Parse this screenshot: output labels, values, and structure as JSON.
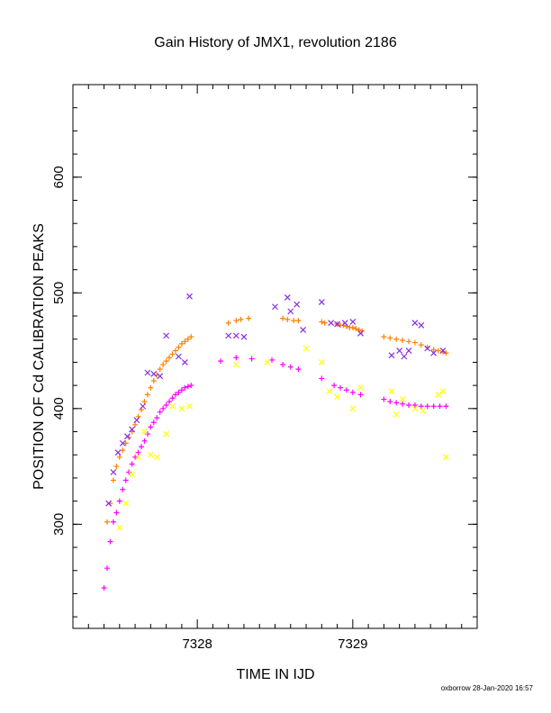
{
  "footer": "oxborrow 28-Jan-2020 16:57",
  "chart_data": {
    "type": "scatter",
    "title": "Gain History of JMX1, revolution 2186",
    "xlabel": "TIME IN IJD",
    "ylabel": "POSITION OF Cd CALIBRATION PEAKS",
    "xlim": [
      7327.2,
      7329.8
    ],
    "ylim": [
      210,
      680
    ],
    "x_ticks": [
      7328,
      7329
    ],
    "y_ticks": [
      300,
      400,
      500,
      600
    ],
    "grid": false,
    "colors": {
      "orange": "#ff8000",
      "purple": "#8a2be2",
      "magenta": "#ff00ff",
      "yellow": "#ffff00"
    },
    "series": [
      {
        "color": "orange",
        "marker": "plus",
        "x": [
          7327.42,
          7327.44,
          7327.46,
          7327.48,
          7327.5,
          7327.52,
          7327.54,
          7327.56,
          7327.58,
          7327.6,
          7327.62,
          7327.64,
          7327.66,
          7327.68,
          7327.7,
          7327.72,
          7327.74,
          7327.76,
          7327.78,
          7327.8,
          7327.82,
          7327.84,
          7327.86,
          7327.88,
          7327.9,
          7327.92,
          7327.94,
          7327.96,
          7328.2,
          7328.25,
          7328.28,
          7328.33,
          7328.55,
          7328.58,
          7328.62,
          7328.65,
          7328.8,
          7328.82,
          7328.9,
          7328.92,
          7328.94,
          7328.96,
          7328.98,
          7329.0,
          7329.02,
          7329.04,
          7329.06,
          7329.2,
          7329.24,
          7329.28,
          7329.32,
          7329.36,
          7329.4,
          7329.44,
          7329.48,
          7329.52,
          7329.55,
          7329.58,
          7329.6
        ],
        "y": [
          302,
          318,
          338,
          350,
          358,
          364,
          370,
          375,
          380,
          386,
          393,
          399,
          406,
          412,
          418,
          424,
          429,
          434,
          438,
          441,
          444,
          447,
          450,
          453,
          456,
          458,
          460,
          462,
          474,
          476,
          477,
          478,
          478,
          477,
          476,
          476,
          475,
          474,
          473,
          472,
          472,
          471,
          470,
          470,
          469,
          468,
          467,
          462,
          461,
          460,
          459,
          458,
          457,
          455,
          453,
          451,
          450,
          449,
          448
        ]
      },
      {
        "color": "purple",
        "marker": "cross",
        "x": [
          7327.43,
          7327.46,
          7327.49,
          7327.52,
          7327.55,
          7327.58,
          7327.61,
          7327.65,
          7327.68,
          7327.72,
          7327.76,
          7327.8,
          7327.88,
          7327.92,
          7327.95,
          7328.2,
          7328.25,
          7328.3,
          7328.5,
          7328.58,
          7328.6,
          7328.64,
          7328.68,
          7328.8,
          7328.86,
          7328.9,
          7328.95,
          7329.0,
          7329.05,
          7329.25,
          7329.3,
          7329.33,
          7329.36,
          7329.4,
          7329.44,
          7329.48,
          7329.52,
          7329.58
        ],
        "y": [
          318,
          345,
          362,
          370,
          376,
          382,
          390,
          402,
          431,
          430,
          428,
          463,
          445,
          440,
          497,
          463,
          463,
          462,
          488,
          496,
          484,
          490,
          468,
          492,
          474,
          473,
          474,
          475,
          465,
          446,
          450,
          445,
          450,
          474,
          472,
          452,
          448,
          450
        ]
      },
      {
        "color": "magenta",
        "marker": "plus",
        "x": [
          7327.4,
          7327.42,
          7327.44,
          7327.46,
          7327.48,
          7327.5,
          7327.52,
          7327.54,
          7327.56,
          7327.58,
          7327.6,
          7327.62,
          7327.64,
          7327.66,
          7327.68,
          7327.7,
          7327.72,
          7327.74,
          7327.76,
          7327.78,
          7327.8,
          7327.82,
          7327.84,
          7327.86,
          7327.88,
          7327.9,
          7327.92,
          7327.94,
          7327.96,
          7328.15,
          7328.25,
          7328.35,
          7328.48,
          7328.55,
          7328.6,
          7328.65,
          7328.8,
          7328.88,
          7328.92,
          7328.96,
          7329.0,
          7329.05,
          7329.2,
          7329.24,
          7329.28,
          7329.32,
          7329.36,
          7329.4,
          7329.44,
          7329.48,
          7329.52,
          7329.56,
          7329.6
        ],
        "y": [
          245,
          262,
          285,
          302,
          310,
          320,
          330,
          338,
          345,
          352,
          358,
          362,
          367,
          372,
          378,
          384,
          388,
          392,
          397,
          400,
          403,
          406,
          409,
          412,
          414,
          416,
          418,
          419,
          420,
          441,
          444,
          443,
          442,
          438,
          436,
          434,
          426,
          420,
          418,
          416,
          414,
          412,
          408,
          406,
          405,
          404,
          403,
          403,
          402,
          402,
          402,
          402,
          402
        ]
      },
      {
        "color": "yellow",
        "marker": "cross",
        "x": [
          7327.5,
          7327.54,
          7327.58,
          7327.62,
          7327.66,
          7327.7,
          7327.74,
          7327.8,
          7327.84,
          7327.9,
          7327.95,
          7328.25,
          7328.45,
          7328.7,
          7328.8,
          7328.85,
          7328.9,
          7329.0,
          7329.05,
          7329.25,
          7329.28,
          7329.32,
          7329.4,
          7329.45,
          7329.55,
          7329.58,
          7329.6
        ],
        "y": [
          297,
          318,
          343,
          358,
          380,
          360,
          358,
          378,
          402,
          400,
          402,
          438,
          440,
          452,
          440,
          415,
          410,
          400,
          418,
          415,
          395,
          408,
          400,
          398,
          412,
          415,
          358
        ]
      }
    ]
  }
}
